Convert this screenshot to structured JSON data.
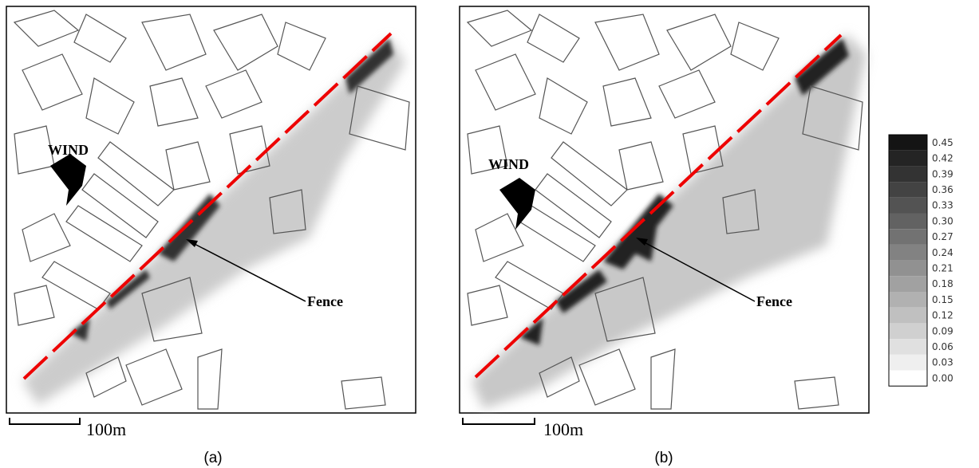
{
  "panels": [
    {
      "wind": "WIND",
      "fence": "Fence",
      "scale": "100m",
      "label": "(a)"
    },
    {
      "wind": "WIND",
      "fence": "Fence",
      "scale": "100m",
      "label": "(b)"
    }
  ],
  "legend": {
    "levels": [
      "0.45",
      "0.42",
      "0.39",
      "0.36",
      "0.33",
      "0.30",
      "0.27",
      "0.24",
      "0.21",
      "0.18",
      "0.15",
      "0.12",
      "0.09",
      "0.06",
      "0.03",
      "0.00"
    ]
  }
}
